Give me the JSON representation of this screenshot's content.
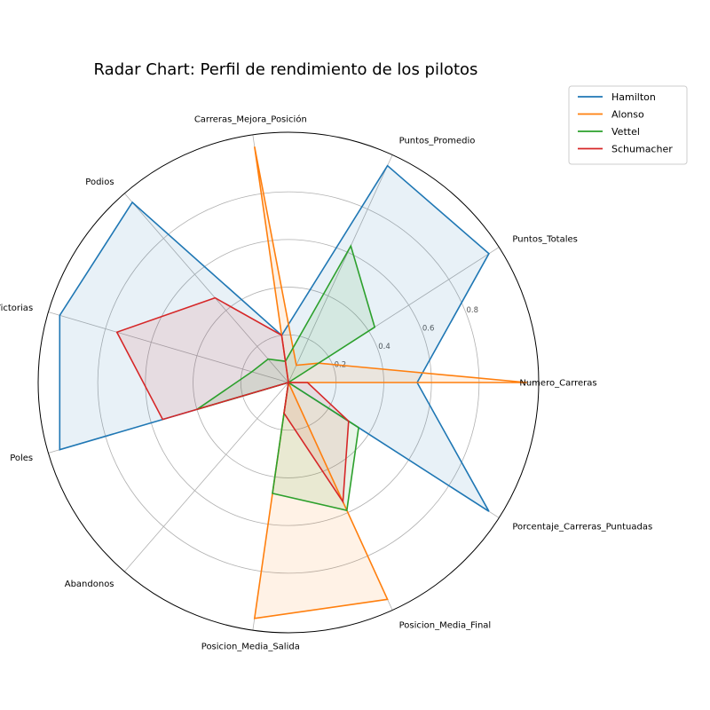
{
  "chart_data": {
    "type": "radar",
    "title": "Radar Chart: Perfil de rendimiento de los pilotos",
    "axes": [
      "Numero_Carreras",
      "Puntos_Totales",
      "Puntos_Promedio",
      "Carreras_Mejora_Posición",
      "Podios",
      "Victorias",
      "Poles",
      "Abandonos",
      "Posicion_Media_Salida",
      "Posicion_Media_Final",
      "Porcentaje_Carreras_Puntuadas"
    ],
    "rticks": [
      "0.2",
      "0.4",
      "0.6",
      "0.8"
    ],
    "rtick_values": [
      0.2,
      0.4,
      0.6,
      0.8
    ],
    "rlim": [
      0,
      1.05
    ],
    "grid": true,
    "legend_position": "top-right",
    "series": [
      {
        "name": "Hamilton",
        "color": "#1f77b4",
        "values": [
          0.54,
          1.0,
          1.0,
          0.2,
          1.0,
          1.0,
          1.0,
          0.0,
          0.0,
          0.0,
          1.0
        ]
      },
      {
        "name": "Alonso",
        "color": "#ff7f0e",
        "values": [
          1.0,
          0.15,
          0.08,
          1.0,
          0.0,
          0.0,
          0.0,
          0.0,
          1.0,
          1.0,
          0.0
        ]
      },
      {
        "name": "Vettel",
        "color": "#2ca02c",
        "values": [
          0.0,
          0.43,
          0.63,
          0.09,
          0.13,
          0.16,
          0.4,
          0.0,
          0.47,
          0.59,
          0.35
        ]
      },
      {
        "name": "Schumacher",
        "color": "#d62728",
        "values": [
          0.08,
          0.0,
          0.0,
          0.2,
          0.47,
          0.75,
          0.55,
          0.0,
          0.13,
          0.55,
          0.3
        ]
      }
    ]
  }
}
